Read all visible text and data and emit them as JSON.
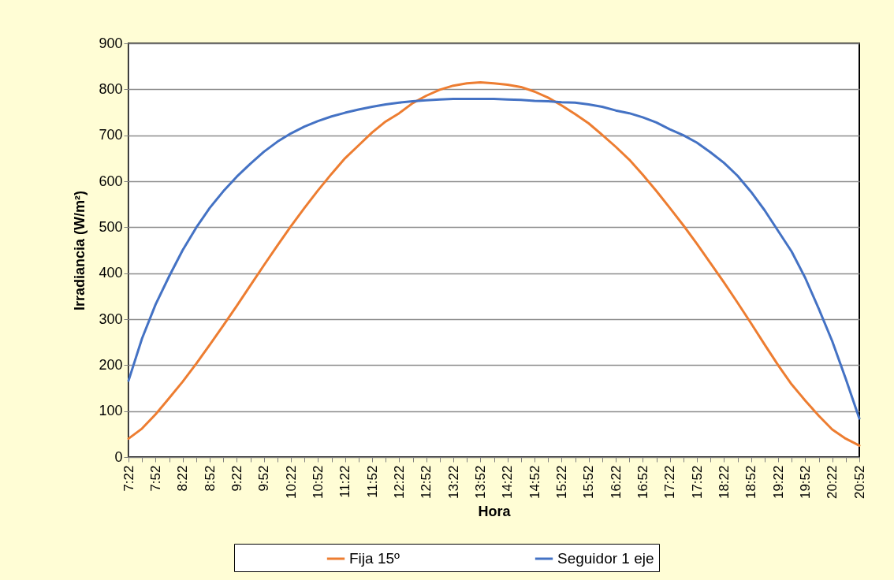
{
  "chart_data": {
    "type": "line",
    "xlabel": "Hora",
    "ylabel": "Irradiancia (W/m²)",
    "categories": [
      "7:22",
      null,
      "7:52",
      null,
      "8:22",
      null,
      "8:52",
      null,
      "9:22",
      null,
      "9:52",
      null,
      "10:22",
      null,
      "10:52",
      null,
      "11:22",
      null,
      "11:52",
      null,
      "12:22",
      null,
      "12:52",
      null,
      "13:22",
      null,
      "13:52",
      null,
      "14:22",
      null,
      "14:52",
      null,
      "15:22",
      null,
      "15:52",
      null,
      "16:22",
      null,
      "16:52",
      null,
      "17:22",
      null,
      "17:52",
      null,
      "18:22",
      null,
      "18:52",
      null,
      "19:22",
      null,
      "19:52",
      null,
      "20:22",
      null,
      "20:52"
    ],
    "series": [
      {
        "name": "Fija 15º",
        "color": "#ed7d31",
        "values": [
          40,
          62,
          93,
          128,
          164,
          203,
          244,
          286,
          329,
          373,
          417,
          460,
          502,
          542,
          580,
          616,
          650,
          678,
          706,
          730,
          748,
          770,
          786,
          799,
          808,
          813,
          815,
          813,
          810,
          805,
          795,
          782,
          765,
          746,
          726,
          701,
          675,
          647,
          614,
          579,
          542,
          504,
          464,
          422,
          380,
          336,
          291,
          245,
          200,
          158,
          123,
          90,
          60,
          40,
          25
        ]
      },
      {
        "name": "Seguidor 1 eje",
        "color": "#4472c4",
        "values": [
          166,
          258,
          332,
          393,
          450,
          499,
          542,
          578,
          610,
          638,
          664,
          686,
          704,
          719,
          731,
          741,
          749,
          756,
          762,
          767,
          771,
          774,
          776,
          778,
          779,
          779,
          779,
          779,
          778,
          777,
          775,
          774,
          772,
          771,
          767,
          762,
          754,
          748,
          739,
          728,
          713,
          700,
          684,
          663,
          640,
          612,
          577,
          537,
          492,
          447,
          390,
          323,
          252,
          170,
          84
        ]
      }
    ],
    "ylim": [
      0,
      900
    ],
    "yticks": [
      0,
      100,
      200,
      300,
      400,
      500,
      600,
      700,
      800,
      900
    ],
    "grid": "y",
    "legend": "bottom",
    "marker": "none",
    "line_style": "solid"
  }
}
